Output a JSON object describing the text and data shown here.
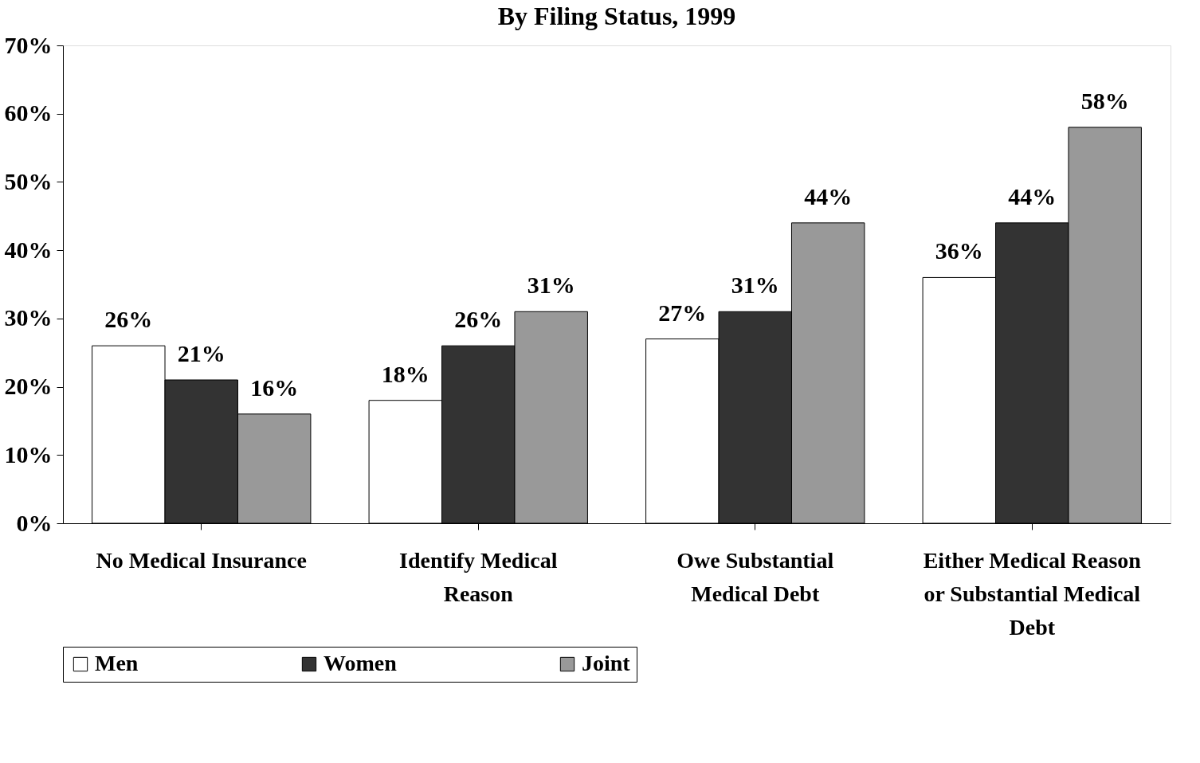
{
  "chart_data": {
    "type": "bar",
    "title": "By Filing Status, 1999",
    "categories": [
      "No Medical Insurance",
      "Identify Medical Reason",
      "Owe Substantial Medical Debt",
      "Either Medical Reason or Substantial Medical Debt"
    ],
    "series": [
      {
        "name": "Men",
        "color": "#ffffff",
        "values": [
          26,
          18,
          27,
          36
        ],
        "value_labels": [
          "26%",
          "18%",
          "27%",
          "36%"
        ]
      },
      {
        "name": "Women",
        "color": "#333333",
        "values": [
          21,
          26,
          31,
          44
        ],
        "value_labels": [
          "21%",
          "26%",
          "31%",
          "44%"
        ]
      },
      {
        "name": "Joint",
        "color": "#999999",
        "values": [
          16,
          31,
          44,
          58
        ],
        "value_labels": [
          "16%",
          "31%",
          "44%",
          "58%"
        ]
      }
    ],
    "ylim": [
      0,
      70
    ],
    "yticks": [
      {
        "value": 0,
        "label": "0%"
      },
      {
        "value": 10,
        "label": "10%"
      },
      {
        "value": 20,
        "label": "20%"
      },
      {
        "value": 30,
        "label": "30%"
      },
      {
        "value": 40,
        "label": "40%"
      },
      {
        "value": 50,
        "label": "50%"
      },
      {
        "value": 60,
        "label": "60%"
      },
      {
        "value": 70,
        "label": "70%"
      }
    ],
    "grid": false,
    "legend": "bottom"
  }
}
